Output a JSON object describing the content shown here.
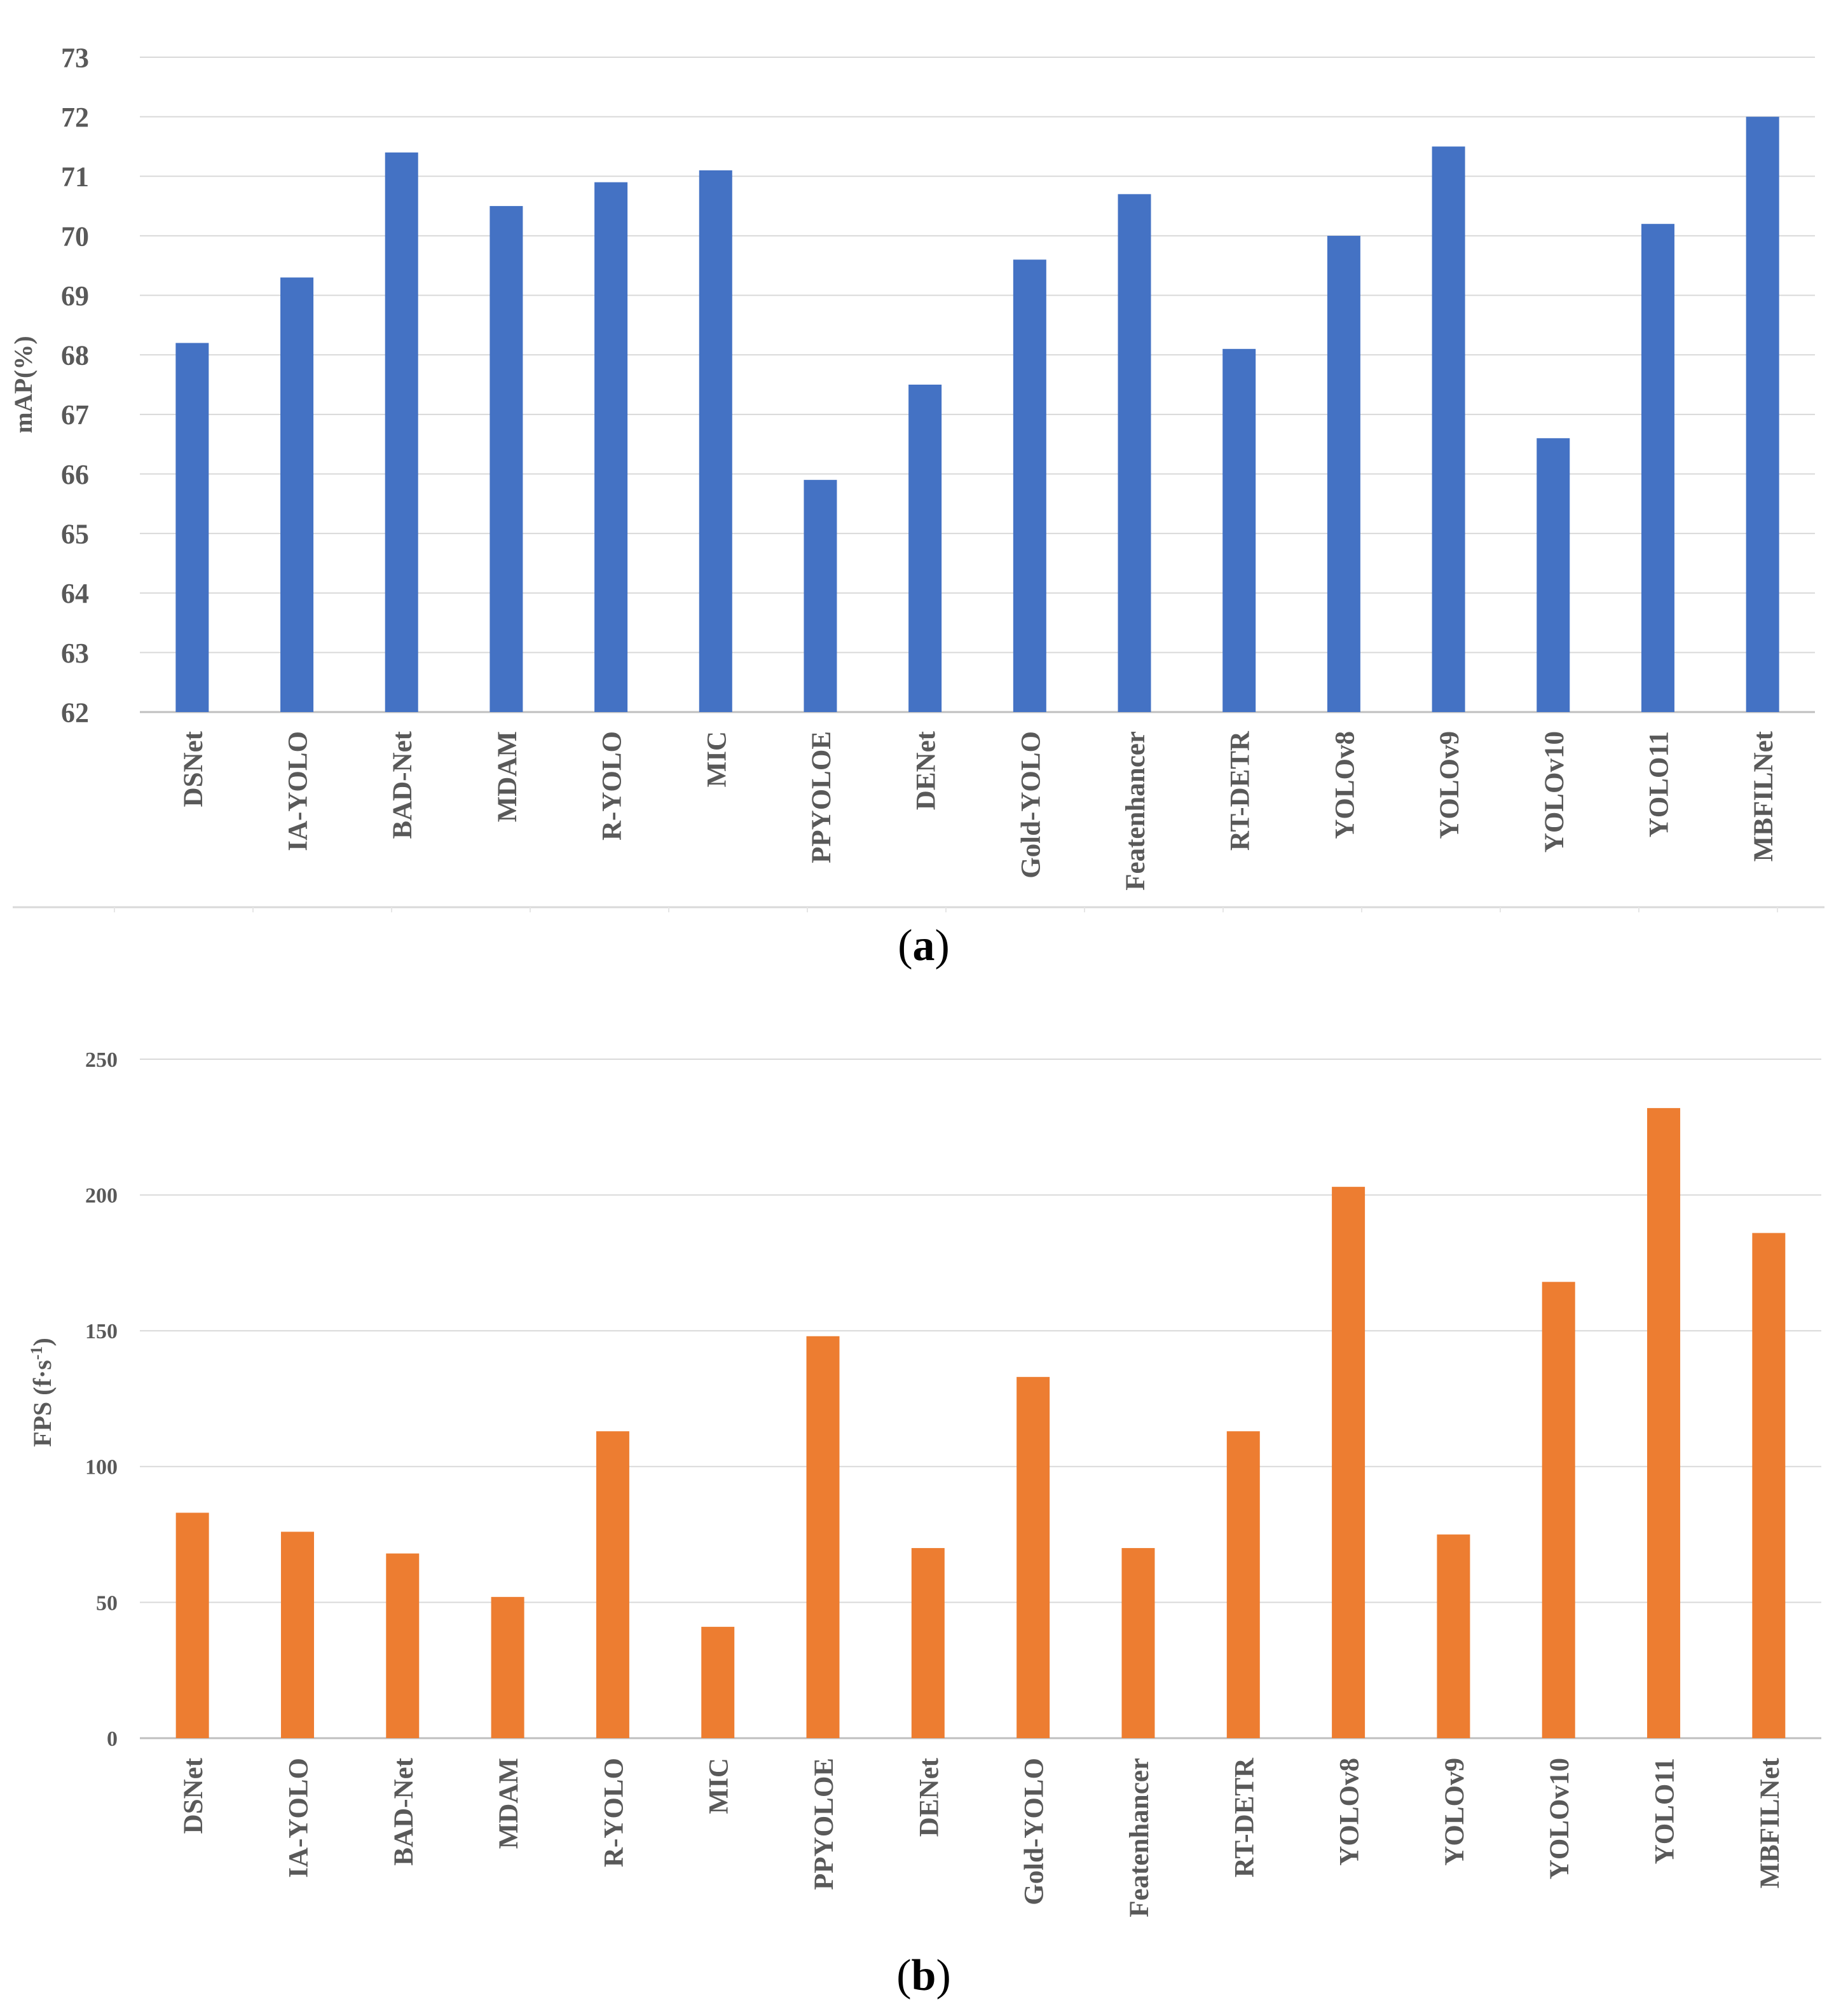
{
  "chart_data": [
    {
      "type": "bar",
      "panel_label": "a",
      "title": "",
      "xlabel": "",
      "ylabel": "mAP(%)",
      "ylim": [
        62,
        73
      ],
      "yticks": [
        62,
        63,
        64,
        65,
        66,
        67,
        68,
        69,
        70,
        71,
        72,
        73
      ],
      "grid": true,
      "color": "#4472C4",
      "categories": [
        "DSNet",
        "IA-YOLO",
        "BAD-Net",
        "MDAM",
        "R-YOLO",
        "MIC",
        "PPYOLOE",
        "DENet",
        "Gold-YOLO",
        "Featenhancer",
        "RT-DETR",
        "YOLOv8",
        "YOLOv9",
        "YOLOv10",
        "YOLO11",
        "MBFILNet"
      ],
      "values": [
        68.2,
        69.3,
        71.4,
        70.5,
        70.9,
        71.1,
        65.9,
        67.5,
        69.6,
        70.7,
        68.1,
        70.0,
        71.5,
        66.6,
        70.2,
        72.0
      ]
    },
    {
      "type": "bar",
      "panel_label": "b",
      "title": "",
      "xlabel": "",
      "ylabel": "FPS (f·s",
      "ylabel_sup": "-1",
      "ylabel_end": ")",
      "ylim": [
        0,
        250
      ],
      "yticks": [
        0,
        50,
        100,
        150,
        200,
        250
      ],
      "grid": true,
      "color": "#ED7D31",
      "categories": [
        "DSNet",
        "IA-YOLO",
        "BAD-Net",
        "MDAM",
        "R-YOLO",
        "MIC",
        "PPYOLOE",
        "DENet",
        "Gold-YOLO",
        "Featenhancer",
        "RT-DETR",
        "YOLOv8",
        "YOLOv9",
        "YOLOv10",
        "YOLO11",
        "MBFILNet"
      ],
      "values": [
        83,
        76,
        68,
        52,
        113,
        41,
        148,
        70,
        133,
        70,
        113,
        203,
        75,
        168,
        232,
        186
      ]
    }
  ]
}
